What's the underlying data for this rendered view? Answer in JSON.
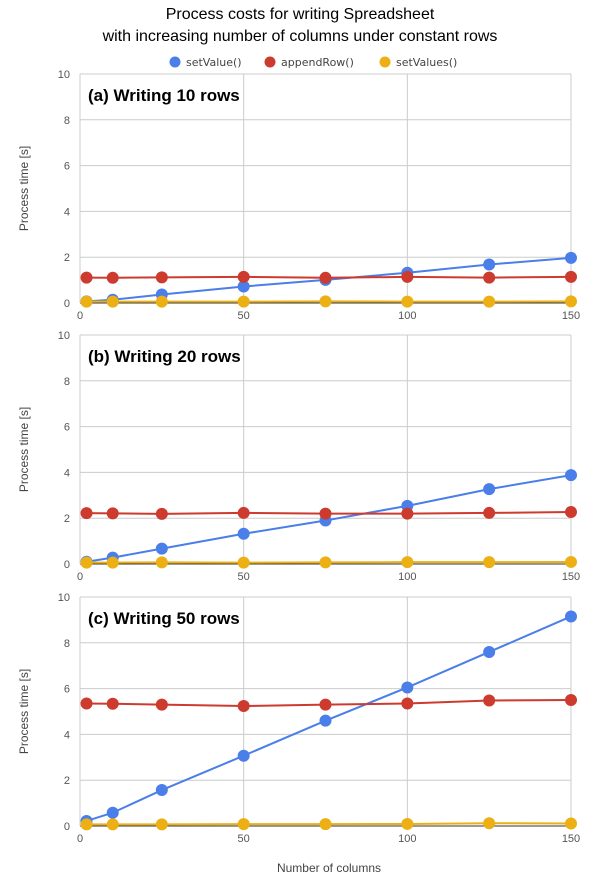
{
  "title_line1": "Process costs for writing Spreadsheet",
  "title_line2": "with increasing number of columns under constant rows",
  "chart_data": {
    "type": "line",
    "title": "Process costs for writing Spreadsheet with increasing number of columns under constant rows",
    "xlabel": "Number of columns",
    "ylabel": "Process time [s]",
    "xlim": [
      0,
      150
    ],
    "ylim": [
      0,
      10
    ],
    "x_ticks": [
      0,
      50,
      100,
      150
    ],
    "y_ticks": [
      0,
      2,
      4,
      6,
      8,
      10
    ],
    "grid": true,
    "legend_position": "top",
    "x": [
      2,
      10,
      25,
      50,
      75,
      100,
      125,
      150
    ],
    "series_colors": {
      "setValue()": "#4a7ee8",
      "appendRow()": "#cc3b2e",
      "setValues()": "#ecb015"
    },
    "legend": [
      "setValue()",
      "appendRow()",
      "setValues()"
    ],
    "panels": [
      {
        "label": "(a) Writing 10 rows",
        "series": [
          {
            "name": "setValue()",
            "values": [
              0.07,
              0.14,
              0.37,
              0.72,
              1.01,
              1.32,
              1.68,
              1.97
            ]
          },
          {
            "name": "appendRow()",
            "values": [
              1.11,
              1.1,
              1.12,
              1.14,
              1.1,
              1.14,
              1.11,
              1.14
            ]
          },
          {
            "name": "setValues()",
            "values": [
              0.06,
              0.06,
              0.06,
              0.06,
              0.07,
              0.06,
              0.06,
              0.07
            ]
          }
        ]
      },
      {
        "label": "(b) Writing 20 rows",
        "series": [
          {
            "name": "setValue()",
            "values": [
              0.1,
              0.28,
              0.67,
              1.32,
              1.9,
              2.54,
              3.27,
              3.88
            ]
          },
          {
            "name": "appendRow()",
            "values": [
              2.22,
              2.21,
              2.19,
              2.23,
              2.2,
              2.2,
              2.23,
              2.27
            ]
          },
          {
            "name": "setValues()",
            "values": [
              0.06,
              0.06,
              0.07,
              0.06,
              0.07,
              0.08,
              0.08,
              0.09
            ]
          }
        ]
      },
      {
        "label": "(c) Writing 50 rows",
        "series": [
          {
            "name": "setValue()",
            "values": [
              0.22,
              0.58,
              1.57,
              3.07,
              4.6,
              6.05,
              7.6,
              9.15
            ]
          },
          {
            "name": "appendRow()",
            "values": [
              5.35,
              5.34,
              5.3,
              5.24,
              5.3,
              5.35,
              5.48,
              5.5
            ]
          },
          {
            "name": "setValues()",
            "values": [
              0.07,
              0.07,
              0.07,
              0.08,
              0.08,
              0.09,
              0.12,
              0.11
            ]
          }
        ]
      }
    ]
  }
}
